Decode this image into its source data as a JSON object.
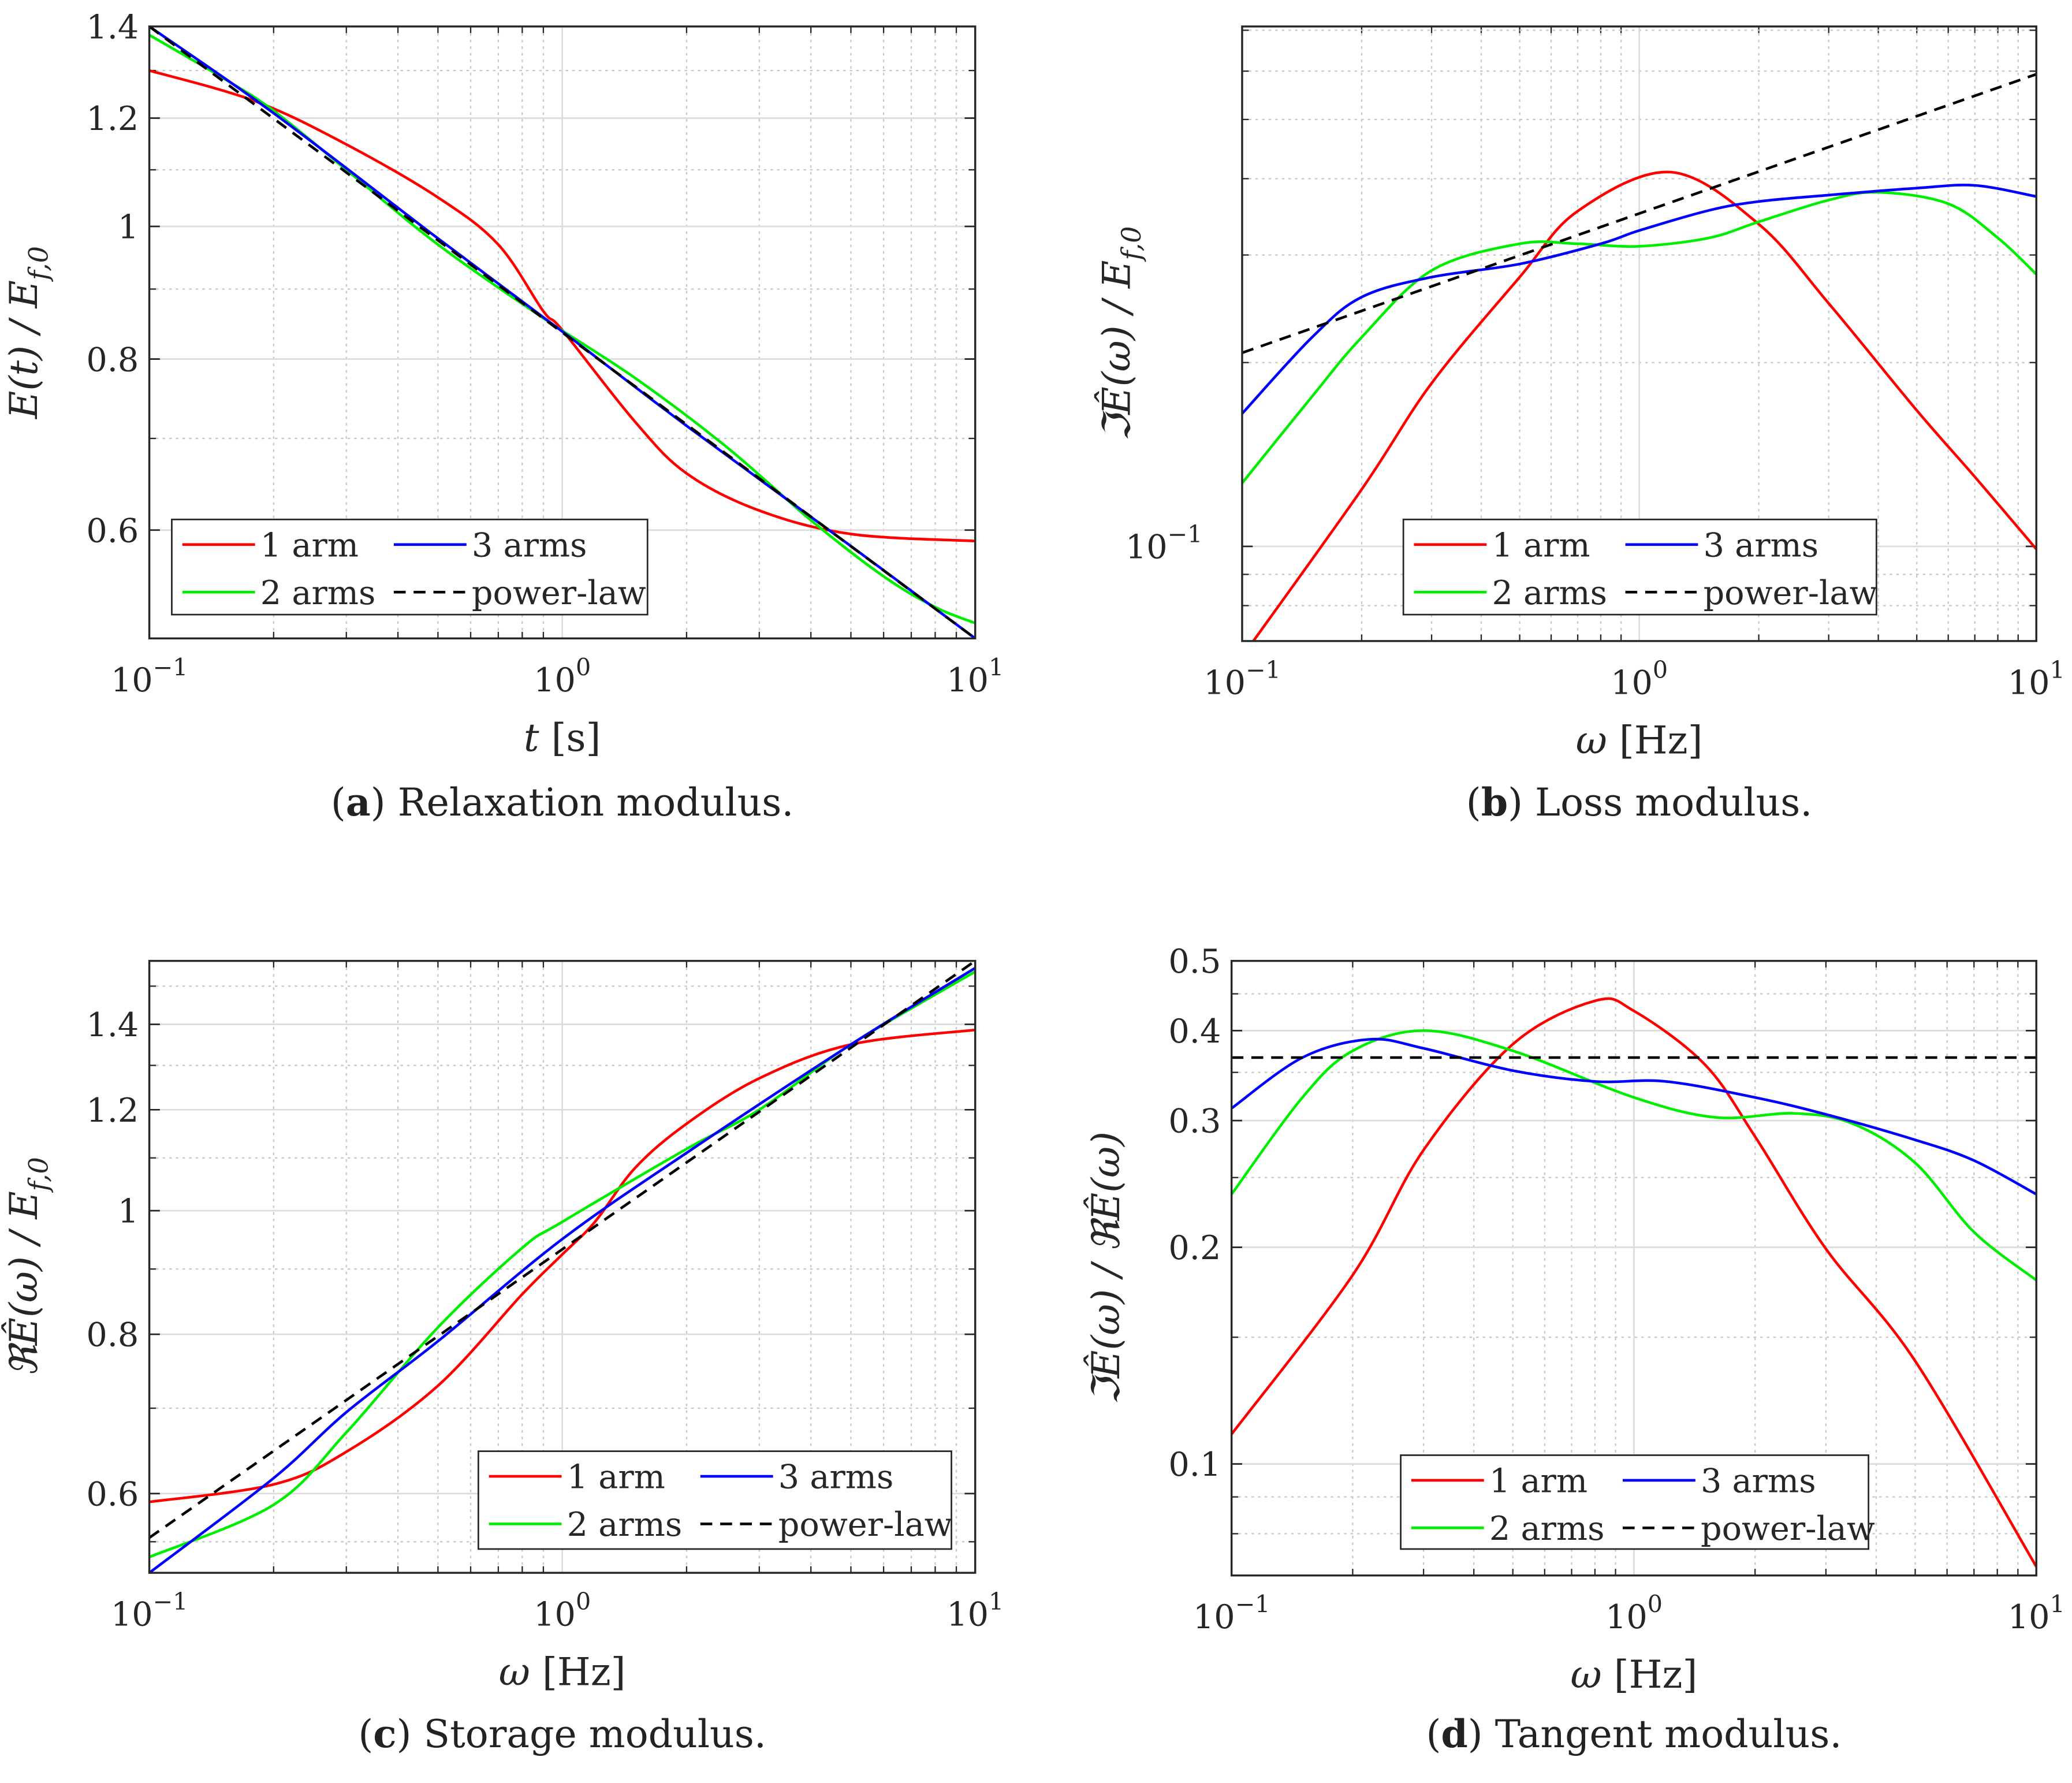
{
  "colors": {
    "1 arm": "#ff0000",
    "2 arms": "#00ee00",
    "3 arms": "#0000ff",
    "power-law": "#000000",
    "grid": "#d4d4d4",
    "axis": "#262626"
  },
  "chart_data": [
    {
      "id": "a",
      "type": "line",
      "caption": {
        "label": "a",
        "text": " Relaxation modulus."
      },
      "xlabel": {
        "var": "t",
        "unit": " [s]"
      },
      "ylabel": {
        "main": "E(t) / E",
        "sub": "f,0"
      },
      "xscale": "log",
      "yscale": "log",
      "xlim": [
        0.1,
        10
      ],
      "ylim": [
        0.5,
        1.4
      ],
      "xticks": [
        {
          "v": 0.1,
          "base": "10",
          "exp": "−1"
        },
        {
          "v": 1,
          "base": "10",
          "exp": "0"
        },
        {
          "v": 10,
          "base": "10",
          "exp": "1"
        }
      ],
      "yticks": [
        {
          "v": 0.6,
          "label": "0.6"
        },
        {
          "v": 0.8,
          "label": "0.8"
        },
        {
          "v": 1,
          "label": "1"
        },
        {
          "v": 1.2,
          "label": "1.2"
        },
        {
          "v": 1.4,
          "label": "1.4"
        }
      ],
      "yminor": [
        0.5,
        0.7,
        0.9,
        1.1,
        1.3
      ],
      "legend": {
        "placement": "bottom-left",
        "entries": [
          "1 arm",
          "3 arms",
          "2 arms",
          "power-law"
        ]
      },
      "series": [
        {
          "name": "1 arm",
          "x": [
            0.1,
            0.18,
            0.3,
            0.5,
            0.7,
            0.9,
            1.0,
            1.5,
            2,
            3,
            5,
            10
          ],
          "y": [
            1.3,
            1.235,
            1.148,
            1.05,
            0.97,
            0.867,
            0.84,
            0.72,
            0.66,
            0.62,
            0.596,
            0.589
          ]
        },
        {
          "name": "2 arms",
          "x": [
            0.1,
            0.15,
            0.2,
            0.3,
            0.5,
            0.9,
            1.5,
            2.5,
            4,
            6,
            8,
            10
          ],
          "y": [
            1.38,
            1.285,
            1.215,
            1.1,
            0.97,
            0.857,
            0.775,
            0.69,
            0.61,
            0.555,
            0.527,
            0.513
          ]
        },
        {
          "name": "3 arms",
          "x": [
            0.1,
            0.2,
            0.5,
            1,
            2,
            5,
            10
          ],
          "y": [
            1.4,
            1.21,
            0.98,
            0.838,
            0.715,
            0.584,
            0.5
          ]
        },
        {
          "name": "power-law",
          "x": [
            0.1,
            10
          ],
          "y": [
            1.4,
            0.5
          ],
          "dashed": true
        }
      ]
    },
    {
      "id": "b",
      "type": "line",
      "caption": {
        "label": "b",
        "text": " Loss modulus."
      },
      "xlabel": {
        "var": "ω",
        "unit": " [Hz]"
      },
      "ylabel": {
        "main": "ℑÊ(ω) / E",
        "sub": "f,0"
      },
      "xscale": "log",
      "yscale": "log",
      "xlim": [
        0.1,
        10
      ],
      "ylim": [
        0.07,
        0.71
      ],
      "xticks": [
        {
          "v": 0.1,
          "base": "10",
          "exp": "−1"
        },
        {
          "v": 1,
          "base": "10",
          "exp": "0"
        },
        {
          "v": 10,
          "base": "10",
          "exp": "1"
        }
      ],
      "yticks": [
        {
          "v": 0.1,
          "base": "10",
          "exp": "−1"
        }
      ],
      "yminor": [
        0.08,
        0.09,
        0.2,
        0.3,
        0.4,
        0.5,
        0.6,
        0.7
      ],
      "legend": {
        "placement": "bottom-center",
        "entries": [
          "1 arm",
          "3 arms",
          "2 arms",
          "power-law"
        ]
      },
      "series": [
        {
          "name": "1 arm",
          "x": [
            0.1,
            0.2,
            0.3,
            0.5,
            0.7,
            1.2,
            2,
            3,
            5,
            7,
            10
          ],
          "y": [
            0.066,
            0.124,
            0.185,
            0.276,
            0.354,
            0.41,
            0.337,
            0.25,
            0.167,
            0.13,
            0.099
          ]
        },
        {
          "name": "2 arms",
          "x": [
            0.1,
            0.15,
            0.2,
            0.3,
            0.5,
            0.7,
            1,
            1.5,
            2,
            3,
            4,
            6,
            8,
            10
          ],
          "y": [
            0.127,
            0.176,
            0.22,
            0.283,
            0.313,
            0.313,
            0.31,
            0.32,
            0.34,
            0.369,
            0.38,
            0.364,
            0.32,
            0.279
          ]
        },
        {
          "name": "3 arms",
          "x": [
            0.1,
            0.15,
            0.2,
            0.3,
            0.5,
            0.8,
            1,
            1.5,
            2,
            3,
            5,
            7,
            10
          ],
          "y": [
            0.165,
            0.22,
            0.256,
            0.276,
            0.29,
            0.313,
            0.329,
            0.355,
            0.367,
            0.376,
            0.386,
            0.39,
            0.374
          ]
        },
        {
          "name": "power-law",
          "x": [
            0.1,
            10
          ],
          "y": [
            0.2075,
            0.593
          ],
          "dashed": true
        }
      ]
    },
    {
      "id": "c",
      "type": "line",
      "caption": {
        "label": "c",
        "text": " Storage modulus."
      },
      "xlabel": {
        "var": "ω",
        "unit": " [Hz]"
      },
      "ylabel": {
        "main": "ℜÊ(ω) / E",
        "sub": "f,0"
      },
      "xscale": "log",
      "yscale": "log",
      "xlim": [
        0.1,
        10
      ],
      "ylim": [
        0.52,
        1.57
      ],
      "xticks": [
        {
          "v": 0.1,
          "base": "10",
          "exp": "−1"
        },
        {
          "v": 1,
          "base": "10",
          "exp": "0"
        },
        {
          "v": 10,
          "base": "10",
          "exp": "1"
        }
      ],
      "yticks": [
        {
          "v": 0.6,
          "label": "0.6"
        },
        {
          "v": 0.8,
          "label": "0.8"
        },
        {
          "v": 1,
          "label": "1"
        },
        {
          "v": 1.2,
          "label": "1.2"
        },
        {
          "v": 1.4,
          "label": "1.4"
        }
      ],
      "yminor": [
        0.55,
        0.7,
        0.9,
        1.1,
        1.3,
        1.5
      ],
      "legend": {
        "placement": "bottom-right",
        "entries": [
          "1 arm",
          "3 arms",
          "2 arms",
          "power-law"
        ]
      },
      "series": [
        {
          "name": "1 arm",
          "x": [
            0.1,
            0.2,
            0.3,
            0.5,
            0.8,
            1,
            1.2,
            1.5,
            2,
            3,
            5,
            10
          ],
          "y": [
            0.591,
            0.61,
            0.647,
            0.729,
            0.86,
            0.924,
            0.98,
            1.08,
            1.17,
            1.27,
            1.35,
            1.386
          ]
        },
        {
          "name": "2 arms",
          "x": [
            0.1,
            0.2,
            0.3,
            0.5,
            0.8,
            1,
            2,
            3,
            5,
            10
          ],
          "y": [
            0.535,
            0.588,
            0.67,
            0.81,
            0.935,
            0.98,
            1.118,
            1.2,
            1.35,
            1.54
          ]
        },
        {
          "name": "3 arms",
          "x": [
            0.1,
            0.2,
            0.3,
            0.5,
            1,
            2,
            5,
            10
          ],
          "y": [
            0.52,
            0.617,
            0.695,
            0.79,
            0.95,
            1.11,
            1.35,
            1.55
          ]
        },
        {
          "name": "power-law",
          "x": [
            0.1,
            10
          ],
          "y": [
            0.554,
            1.57
          ],
          "dashed": true
        }
      ]
    },
    {
      "id": "d",
      "type": "line",
      "caption": {
        "label": "d",
        "text": " Tangent modulus."
      },
      "xlabel": {
        "var": "ω",
        "unit": " [Hz]"
      },
      "ylabel": {
        "main": "ℑÊ(ω) / ℜÊ(ω)",
        "sub": ""
      },
      "xscale": "log",
      "yscale": "log",
      "xlim": [
        0.1,
        10
      ],
      "ylim": [
        0.07,
        0.5
      ],
      "xticks": [
        {
          "v": 0.1,
          "base": "10",
          "exp": "−1"
        },
        {
          "v": 1,
          "base": "10",
          "exp": "0"
        },
        {
          "v": 10,
          "base": "10",
          "exp": "1"
        }
      ],
      "yticks": [
        {
          "v": 0.1,
          "label": "0.1"
        },
        {
          "v": 0.2,
          "label": "0.2"
        },
        {
          "v": 0.3,
          "label": "0.3"
        },
        {
          "v": 0.4,
          "label": "0.4"
        },
        {
          "v": 0.5,
          "label": "0.5"
        }
      ],
      "yminor": [
        0.08,
        0.09,
        0.15,
        0.25,
        0.35,
        0.45
      ],
      "legend": {
        "placement": "bottom-right",
        "entries": [
          "1 arm",
          "3 arms",
          "2 arms",
          "power-law"
        ]
      },
      "series": [
        {
          "name": "1 arm",
          "x": [
            0.1,
            0.2,
            0.3,
            0.5,
            0.8,
            1,
            1.5,
            2,
            3,
            5,
            10
          ],
          "y": [
            0.11,
            0.183,
            0.273,
            0.383,
            0.44,
            0.426,
            0.359,
            0.285,
            0.199,
            0.139,
            0.072
          ]
        },
        {
          "name": "2 arms",
          "x": [
            0.1,
            0.15,
            0.2,
            0.3,
            0.5,
            1,
            1.6,
            2.5,
            3.5,
            5,
            7,
            10
          ],
          "y": [
            0.237,
            0.323,
            0.375,
            0.4,
            0.375,
            0.323,
            0.303,
            0.307,
            0.297,
            0.262,
            0.21,
            0.18
          ]
        },
        {
          "name": "3 arms",
          "x": [
            0.1,
            0.15,
            0.22,
            0.3,
            0.5,
            0.8,
            1.2,
            2,
            3,
            5,
            7,
            10
          ],
          "y": [
            0.312,
            0.367,
            0.389,
            0.378,
            0.352,
            0.34,
            0.34,
            0.323,
            0.306,
            0.282,
            0.264,
            0.237
          ]
        },
        {
          "name": "power-law",
          "x": [
            0.1,
            10
          ],
          "y": [
            0.367,
            0.367
          ],
          "dashed": true
        }
      ]
    }
  ]
}
